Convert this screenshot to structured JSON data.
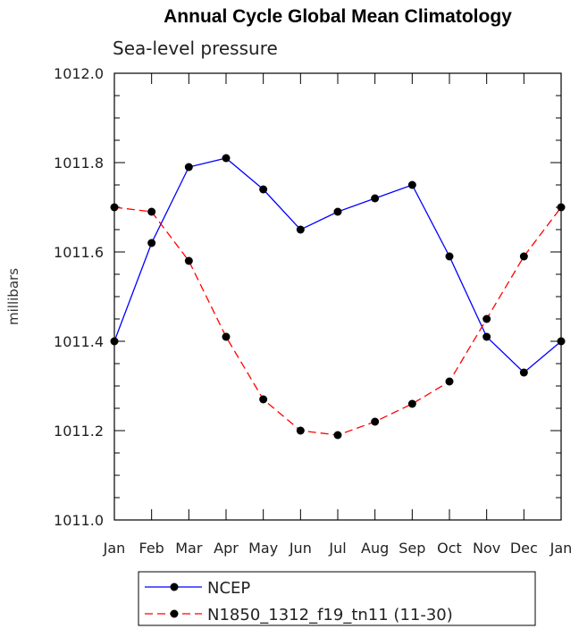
{
  "chart_data": {
    "type": "line",
    "title": "Annual Cycle Global Mean Climatology",
    "subtitle": "Sea-level pressure",
    "ylabel": "millibars",
    "xlabel": "",
    "categories": [
      "Jan",
      "Feb",
      "Mar",
      "Apr",
      "May",
      "Jun",
      "Jul",
      "Aug",
      "Sep",
      "Oct",
      "Nov",
      "Dec",
      "Jan"
    ],
    "ylim": [
      1011.0,
      1012.0
    ],
    "yticks": [
      "1011.0",
      "1011.2",
      "1011.4",
      "1011.6",
      "1011.8",
      "1012.0"
    ],
    "grid": false,
    "legend_placement": "bottom",
    "series": [
      {
        "name": "NCEP",
        "color": "#0000ff",
        "dash": "solid",
        "values": [
          1011.4,
          1011.62,
          1011.79,
          1011.81,
          1011.74,
          1011.65,
          1011.69,
          1011.72,
          1011.75,
          1011.59,
          1011.41,
          1011.33,
          1011.4
        ]
      },
      {
        "name": "N1850_1312_f19_tn11 (11-30)",
        "color": "#ff0000",
        "dash": "dashed",
        "values": [
          1011.7,
          1011.69,
          1011.58,
          1011.41,
          1011.27,
          1011.2,
          1011.19,
          1011.22,
          1011.26,
          1011.31,
          1011.45,
          1011.59,
          1011.7
        ]
      }
    ]
  }
}
